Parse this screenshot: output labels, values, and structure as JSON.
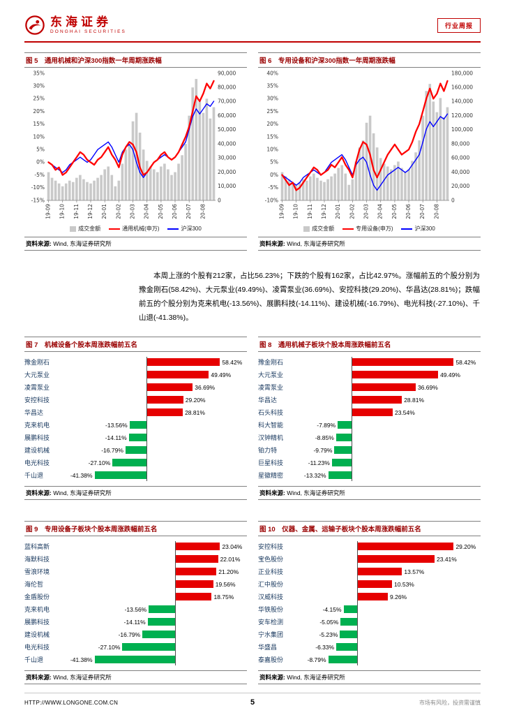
{
  "header": {
    "brand_cn": "东海证券",
    "brand_en": "DONGHAI SECURITIES",
    "badge": "行业周报"
  },
  "body_paragraph": "本周上涨的个股有212家，占比56.23%；下跌的个股有162家，占比42.97%。涨幅前五的个股分别为豫金刚石(58.42%)、大元泵业(49.49%)、凌霄泵业(36.69%)、安控科技(29.20%)、华昌达(28.81%)；跌幅前五的个股分别为克来机电(-13.56%)、展鹏科技(-14.11%)、建设机械(-16.79%)、电光科技(-27.10%)、千山退(-41.38%)。",
  "source_label": "资料来源:",
  "source_value": " Wind, 东海证券研究所",
  "footer": {
    "url": "HTTP://WWW.LONGONE.COM.CN",
    "page_number": "5",
    "disclaimer": "市场有风险，投资需谨慎"
  },
  "colors": {
    "accent_red": "#c00000",
    "title_red": "#990000",
    "bar_positive": "#e60000",
    "bar_negative": "#00b050",
    "line_red": "#ff0000",
    "line_blue": "#0000ff",
    "volume_gray": "#c9c9c9"
  },
  "chart_data": [
    {
      "id": "fig5",
      "type": "combo",
      "title": "图 5　通用机械和沪深300指数一年周期涨跌幅",
      "legend": [
        "成交金额",
        "通用机械(申万)",
        "沪深300"
      ],
      "x_tick_labels": [
        "19-09",
        "19-10",
        "19-11",
        "19-12",
        "20-01",
        "20-02",
        "20-03",
        "20-04",
        "20-05",
        "20-06",
        "20-07",
        "20-08"
      ],
      "left_axis": {
        "min": -15,
        "max": 35,
        "step": 5,
        "suffix": "%"
      },
      "right_axis": {
        "min": 0,
        "max": 90000,
        "step": 10000
      },
      "volume": [
        20000,
        16000,
        14000,
        12000,
        10000,
        12000,
        14000,
        13000,
        16000,
        18000,
        15000,
        13000,
        12000,
        14000,
        16000,
        18000,
        22000,
        24000,
        18000,
        10000,
        14000,
        26000,
        36000,
        40000,
        56000,
        62000,
        48000,
        36000,
        28000,
        24000,
        22000,
        20000,
        24000,
        26000,
        22000,
        18000,
        20000,
        26000,
        32000,
        40000,
        60000,
        80000,
        86000,
        70000,
        62000,
        72000,
        58000,
        66000
      ],
      "series": [
        {
          "name": "通用机械(申万)",
          "color": "#ff0000",
          "values": [
            0,
            -1,
            -3,
            -2,
            -5,
            -4,
            -2,
            0,
            2,
            4,
            3,
            1,
            0,
            -1,
            1,
            2,
            4,
            6,
            3,
            1,
            -2,
            3,
            6,
            8,
            7,
            4,
            -2,
            -5,
            -4,
            -2,
            0,
            1,
            3,
            4,
            2,
            1,
            2,
            4,
            7,
            10,
            14,
            20,
            26,
            24,
            27,
            31,
            29,
            32
          ]
        },
        {
          "name": "沪深300",
          "color": "#0000ff",
          "values": [
            0,
            -1,
            -2,
            -3,
            -4,
            -3,
            -1,
            0,
            1,
            2,
            1,
            0,
            1,
            3,
            5,
            6,
            7,
            8,
            6,
            3,
            0,
            4,
            6,
            7,
            5,
            0,
            -4,
            -6,
            -4,
            -2,
            0,
            1,
            2,
            3,
            2,
            1,
            2,
            4,
            6,
            8,
            13,
            18,
            21,
            19,
            21,
            23,
            22,
            24
          ]
        }
      ]
    },
    {
      "id": "fig6",
      "type": "combo",
      "title": "图 6　专用设备和沪深300指数一年周期涨跌幅",
      "legend": [
        "成交金额",
        "专用设备(申万)",
        "沪深300"
      ],
      "x_tick_labels": [
        "19-09",
        "19-10",
        "19-11",
        "19-12",
        "20-01",
        "20-02",
        "20-03",
        "20-04",
        "20-05",
        "20-06",
        "20-07",
        "20-08"
      ],
      "left_axis": {
        "min": -10,
        "max": 40,
        "step": 5,
        "suffix": "%"
      },
      "right_axis": {
        "min": 0,
        "max": 180000,
        "step": 20000
      },
      "volume": [
        40000,
        34000,
        30000,
        26000,
        22000,
        26000,
        30000,
        28000,
        34000,
        38000,
        32000,
        28000,
        26000,
        30000,
        34000,
        38000,
        46000,
        50000,
        38000,
        22000,
        30000,
        55000,
        75000,
        85000,
        110000,
        120000,
        95000,
        75000,
        60000,
        52000,
        48000,
        44000,
        50000,
        55000,
        46000,
        40000,
        44000,
        56000,
        68000,
        85000,
        120000,
        155000,
        165000,
        140000,
        125000,
        145000,
        118000,
        132000
      ],
      "series": [
        {
          "name": "专用设备(申万)",
          "color": "#ff0000",
          "values": [
            0,
            -2,
            -4,
            -3,
            -6,
            -5,
            -3,
            -1,
            1,
            3,
            2,
            0,
            1,
            2,
            4,
            3,
            5,
            7,
            4,
            2,
            -1,
            5,
            10,
            13,
            12,
            8,
            2,
            -1,
            2,
            5,
            8,
            10,
            12,
            10,
            8,
            9,
            10,
            13,
            17,
            20,
            25,
            30,
            34,
            30,
            32,
            36,
            33,
            37
          ]
        },
        {
          "name": "沪深300",
          "color": "#0000ff",
          "values": [
            0,
            -1,
            -2,
            -3,
            -4,
            -3,
            -1,
            0,
            1,
            2,
            1,
            0,
            1,
            3,
            5,
            6,
            7,
            8,
            6,
            3,
            0,
            4,
            6,
            7,
            5,
            0,
            -4,
            -6,
            -4,
            -2,
            0,
            1,
            2,
            3,
            2,
            1,
            2,
            4,
            6,
            8,
            13,
            18,
            21,
            19,
            21,
            23,
            22,
            24
          ]
        }
      ]
    },
    {
      "id": "fig7",
      "type": "bar",
      "title": "图 7　机械设备个股本周涨跌幅前五名",
      "items": [
        {
          "name": "豫金刚石",
          "value": 58.42,
          "label": "58.42%"
        },
        {
          "name": "大元泵业",
          "value": 49.49,
          "label": "49.49%"
        },
        {
          "name": "凌霄泵业",
          "value": 36.69,
          "label": "36.69%"
        },
        {
          "name": "安控科技",
          "value": 29.2,
          "label": "29.20%"
        },
        {
          "name": "华昌达",
          "value": 28.81,
          "label": "28.81%"
        },
        {
          "name": "克来机电",
          "value": -13.56,
          "label": "-13.56%"
        },
        {
          "name": "展鹏科技",
          "value": -14.11,
          "label": "-14.11%"
        },
        {
          "name": "建设机械",
          "value": -16.79,
          "label": "-16.79%"
        },
        {
          "name": "电光科技",
          "value": -27.1,
          "label": "-27.10%"
        },
        {
          "name": "千山退",
          "value": -41.38,
          "label": "-41.38%"
        }
      ]
    },
    {
      "id": "fig8",
      "type": "bar",
      "title": "图 8　通用机械子板块个股本周涨跌幅前五名",
      "items": [
        {
          "name": "豫金刚石",
          "value": 58.42,
          "label": "58.42%"
        },
        {
          "name": "大元泵业",
          "value": 49.49,
          "label": "49.49%"
        },
        {
          "name": "凌霄泵业",
          "value": 36.69,
          "label": "36.69%"
        },
        {
          "name": "华昌达",
          "value": 28.81,
          "label": "28.81%"
        },
        {
          "name": "石头科技",
          "value": 23.54,
          "label": "23.54%"
        },
        {
          "name": "科大智能",
          "value": -7.89,
          "label": "-7.89%"
        },
        {
          "name": "汉钟精机",
          "value": -8.85,
          "label": "-8.85%"
        },
        {
          "name": "铂力特",
          "value": -9.79,
          "label": "-9.79%"
        },
        {
          "name": "巨星科技",
          "value": -11.23,
          "label": "-11.23%"
        },
        {
          "name": "星徽精密",
          "value": -13.32,
          "label": "-13.32%"
        }
      ]
    },
    {
      "id": "fig9",
      "type": "bar",
      "title": "图 9　专用设备子板块个股本周涨跌幅前五名",
      "items": [
        {
          "name": "蓝科高新",
          "value": 23.04,
          "label": "23.04%"
        },
        {
          "name": "海默科技",
          "value": 22.01,
          "label": "22.01%"
        },
        {
          "name": "雪浪环境",
          "value": 21.2,
          "label": "21.20%"
        },
        {
          "name": "海伦哲",
          "value": 19.56,
          "label": "19.56%"
        },
        {
          "name": "金盾股份",
          "value": 18.75,
          "label": "18.75%"
        },
        {
          "name": "克来机电",
          "value": -13.56,
          "label": "-13.56%"
        },
        {
          "name": "展鹏科技",
          "value": -14.11,
          "label": "-14.11%"
        },
        {
          "name": "建设机械",
          "value": -16.79,
          "label": "-16.79%"
        },
        {
          "name": "电光科技",
          "value": -27.1,
          "label": "-27.10%"
        },
        {
          "name": "千山退",
          "value": -41.38,
          "label": "-41.38%"
        }
      ]
    },
    {
      "id": "fig10",
      "type": "bar",
      "title": "图 10　仪器、金属、运输子板块个股本周涨跌幅前五名",
      "items": [
        {
          "name": "安控科技",
          "value": 29.2,
          "label": "29.20%"
        },
        {
          "name": "宝色股份",
          "value": 23.41,
          "label": "23.41%"
        },
        {
          "name": "正业科技",
          "value": 13.57,
          "label": "13.57%"
        },
        {
          "name": "汇中股份",
          "value": 10.53,
          "label": "10.53%"
        },
        {
          "name": "汉威科技",
          "value": 9.26,
          "label": "9.26%"
        },
        {
          "name": "华铁股份",
          "value": -4.15,
          "label": "-4.15%"
        },
        {
          "name": "安车检测",
          "value": -5.05,
          "label": "-5.05%"
        },
        {
          "name": "宁水集团",
          "value": -5.23,
          "label": "-5.23%"
        },
        {
          "name": "华盛昌",
          "value": -6.33,
          "label": "-6.33%"
        },
        {
          "name": "泰嘉股份",
          "value": -8.79,
          "label": "-8.79%"
        }
      ]
    }
  ]
}
